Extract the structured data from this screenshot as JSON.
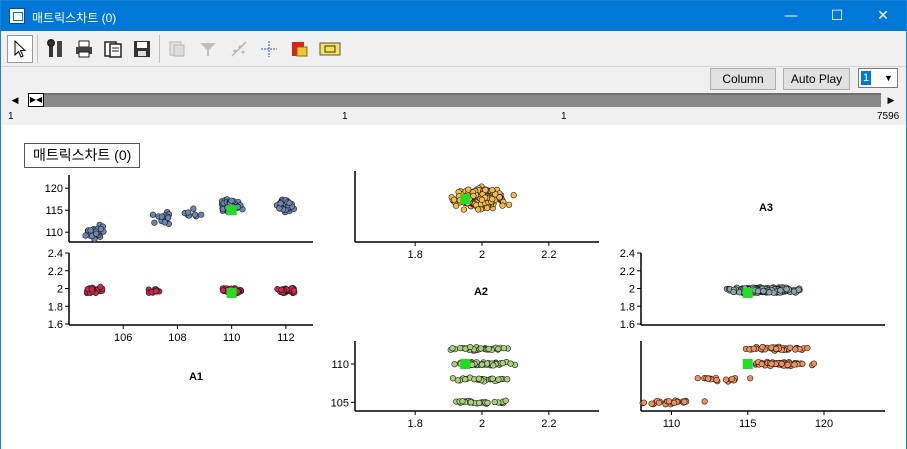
{
  "window": {
    "title": "매트릭스차트 (0)",
    "controls": {
      "minimize": "—",
      "maximize": "☐",
      "close": "✕"
    }
  },
  "toolbar": {
    "icons": [
      "cursor-icon",
      "tools-icon",
      "print-icon",
      "copy-icon",
      "save-icon",
      "copy-disabled-icon",
      "filter-disabled-icon",
      "chart-disabled-icon",
      "crosshair-icon",
      "export-red-icon",
      "label-yellow-icon"
    ]
  },
  "controls": {
    "column_label": "Column",
    "autoplay_label": "Auto Play",
    "speed_value": "1",
    "scroll_ticks": [
      "1",
      "1",
      "1",
      "7596"
    ]
  },
  "chart_title": "매트릭스차트 (0)",
  "colors": {
    "a1_points": "#6b87b0",
    "a1a2_points": "#c8284f",
    "a2_points": "#f4bb4c",
    "a1a3_points": "#8fa7ab",
    "a2a3_points": "#a9cf7e",
    "a3_points": "#f0915c",
    "centroid": "#22dd22"
  },
  "chart_data": [
    {
      "type": "scatter",
      "panel": "A2 vs A1",
      "xlabel": "",
      "ylabel": "",
      "xlim": [
        104,
        113
      ],
      "ylim": [
        108,
        123
      ],
      "yticks": [
        "110",
        "115",
        "120"
      ],
      "centroid": [
        110,
        115
      ],
      "clusters": [
        {
          "x": 105,
          "y": 110,
          "n": 35
        },
        {
          "x": 110,
          "y": 116,
          "n": 60
        },
        {
          "x": 112,
          "y": 116,
          "n": 40
        },
        {
          "x": 107.5,
          "y": 113,
          "n": 14
        },
        {
          "x": 108.6,
          "y": 114,
          "n": 8
        }
      ]
    },
    {
      "type": "scatter",
      "panel": "A3 vs A1",
      "xlabel": "A1",
      "ylabel": "",
      "xlim": [
        104,
        113
      ],
      "ylim": [
        1.6,
        2.4
      ],
      "xticks": [
        "106",
        "108",
        "110",
        "112"
      ],
      "yticks": [
        "1.6",
        "1.8",
        "2",
        "2.2",
        "2.4"
      ],
      "centroid": [
        110,
        1.95
      ],
      "clusters": [
        {
          "x": 105,
          "y": 1.98,
          "n": 30
        },
        {
          "x": 110,
          "y": 1.98,
          "n": 55
        },
        {
          "x": 112,
          "y": 1.98,
          "n": 30
        },
        {
          "x": 107.2,
          "y": 1.98,
          "n": 10
        }
      ]
    },
    {
      "type": "scatter",
      "panel": "A1 vs A2",
      "xlabel": "A2",
      "ylabel": "",
      "xlim": [
        1.62,
        2.35
      ],
      "ylim": [
        104,
        114
      ],
      "centroid": [
        1.95,
        110
      ],
      "clusters": [
        {
          "x": 2.0,
          "y": 110,
          "n": 260
        }
      ]
    },
    {
      "type": "scatter",
      "panel": "A1 vs A2 (lower)",
      "xlabel": "",
      "ylabel": "",
      "xlim": [
        1.62,
        2.35
      ],
      "ylim": [
        104,
        113
      ],
      "xticks": [
        "1.8",
        "2",
        "2.2"
      ],
      "yticks": [
        "105",
        "110"
      ],
      "centroid": [
        1.95,
        110
      ],
      "clusters": [
        {
          "x": 2.0,
          "y": 110,
          "n": 50
        },
        {
          "x": 2.0,
          "y": 112,
          "n": 35
        },
        {
          "x": 2.0,
          "y": 108,
          "n": 30
        },
        {
          "x": 2.0,
          "y": 105,
          "n": 30
        }
      ]
    },
    {
      "type": "scatter",
      "panel": "A3 vs A2",
      "xlabel": "A3",
      "ylabel": "",
      "xlim": [
        108,
        124
      ],
      "ylim": [
        1.6,
        2.4
      ],
      "yticks": [
        "1.6",
        "1.8",
        "2",
        "2.2",
        "2.4"
      ],
      "centroid": [
        115,
        1.95
      ],
      "clusters": [
        {
          "x": 116,
          "y": 1.98,
          "n": 320
        }
      ]
    },
    {
      "type": "scatter",
      "panel": "A3 lower",
      "xlabel": "",
      "ylabel": "",
      "xlim": [
        108,
        124
      ],
      "ylim": [
        104,
        113
      ],
      "xticks": [
        "110",
        "115",
        "120"
      ],
      "centroid": [
        115,
        110
      ],
      "clusters": [
        {
          "x": 117,
          "y": 112,
          "n": 45
        },
        {
          "x": 117,
          "y": 110,
          "n": 60
        },
        {
          "x": 110,
          "y": 105,
          "n": 25
        },
        {
          "x": 113,
          "y": 108,
          "n": 20
        }
      ]
    }
  ]
}
